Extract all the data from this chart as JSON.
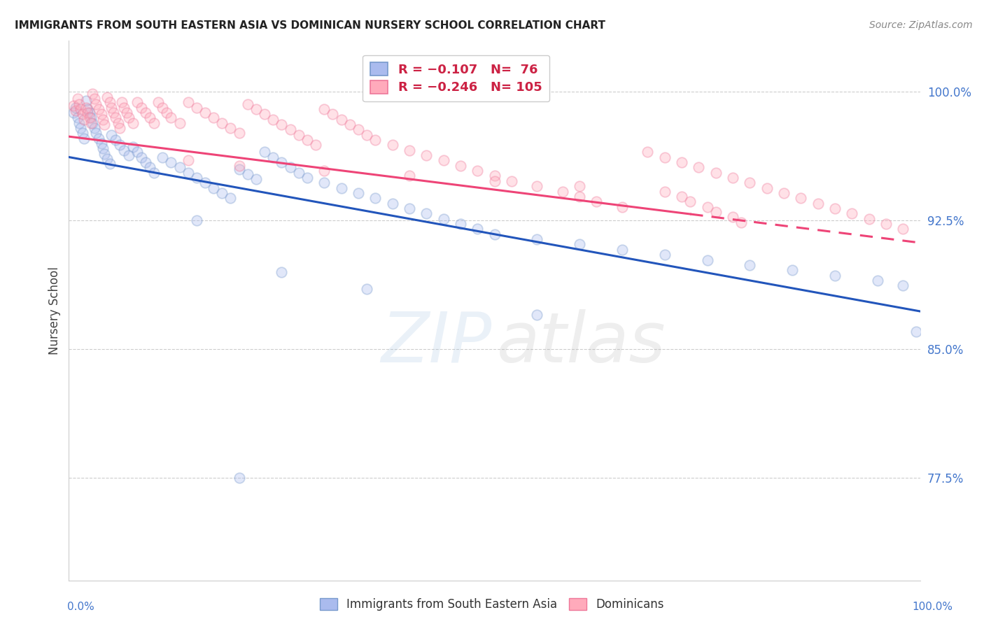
{
  "title": "IMMIGRANTS FROM SOUTH EASTERN ASIA VS DOMINICAN NURSERY SCHOOL CORRELATION CHART",
  "source": "Source: ZipAtlas.com",
  "ylabel": "Nursery School",
  "legend_blue_label": "Immigrants from South Eastern Asia",
  "legend_pink_label": "Dominicans",
  "ytick_labels": [
    "77.5%",
    "85.0%",
    "92.5%",
    "100.0%"
  ],
  "ytick_values": [
    0.775,
    0.85,
    0.925,
    1.0
  ],
  "xlim": [
    0.0,
    1.0
  ],
  "ylim": [
    0.715,
    1.03
  ],
  "blue_face_color": "#AABBEE",
  "blue_edge_color": "#7799CC",
  "pink_face_color": "#FFAABB",
  "pink_edge_color": "#EE7799",
  "blue_line_color": "#2255BB",
  "pink_line_color": "#EE4477",
  "grid_color": "#CCCCCC",
  "background_color": "#FFFFFF",
  "axis_tick_color": "#4477CC",
  "scatter_size": 110,
  "scatter_alpha": 0.35,
  "scatter_linewidth": 1.3,
  "blue_trend": [
    0.962,
    0.872
  ],
  "pink_trend": [
    0.974,
    0.912
  ],
  "blue_scatter_x": [
    0.005,
    0.008,
    0.01,
    0.012,
    0.014,
    0.016,
    0.018,
    0.02,
    0.022,
    0.024,
    0.026,
    0.028,
    0.03,
    0.032,
    0.035,
    0.038,
    0.04,
    0.042,
    0.045,
    0.048,
    0.05,
    0.055,
    0.06,
    0.065,
    0.07,
    0.075,
    0.08,
    0.085,
    0.09,
    0.095,
    0.1,
    0.11,
    0.12,
    0.13,
    0.14,
    0.15,
    0.16,
    0.17,
    0.18,
    0.19,
    0.2,
    0.21,
    0.22,
    0.23,
    0.24,
    0.25,
    0.26,
    0.27,
    0.28,
    0.3,
    0.32,
    0.34,
    0.36,
    0.38,
    0.4,
    0.42,
    0.44,
    0.46,
    0.48,
    0.5,
    0.55,
    0.6,
    0.65,
    0.7,
    0.75,
    0.8,
    0.85,
    0.9,
    0.95,
    0.98,
    0.995,
    0.15,
    0.25,
    0.35,
    0.55,
    0.2
  ],
  "blue_scatter_y": [
    0.988,
    0.991,
    0.985,
    0.982,
    0.979,
    0.976,
    0.973,
    0.995,
    0.99,
    0.988,
    0.985,
    0.982,
    0.979,
    0.976,
    0.973,
    0.97,
    0.967,
    0.964,
    0.961,
    0.958,
    0.975,
    0.972,
    0.969,
    0.966,
    0.963,
    0.968,
    0.965,
    0.962,
    0.959,
    0.956,
    0.953,
    0.962,
    0.959,
    0.956,
    0.953,
    0.95,
    0.947,
    0.944,
    0.941,
    0.938,
    0.955,
    0.952,
    0.949,
    0.965,
    0.962,
    0.959,
    0.956,
    0.953,
    0.95,
    0.947,
    0.944,
    0.941,
    0.938,
    0.935,
    0.932,
    0.929,
    0.926,
    0.923,
    0.92,
    0.917,
    0.914,
    0.911,
    0.908,
    0.905,
    0.902,
    0.899,
    0.896,
    0.893,
    0.89,
    0.887,
    0.86,
    0.925,
    0.895,
    0.885,
    0.87,
    0.775
  ],
  "pink_scatter_x": [
    0.005,
    0.008,
    0.01,
    0.012,
    0.014,
    0.016,
    0.018,
    0.02,
    0.022,
    0.024,
    0.026,
    0.028,
    0.03,
    0.032,
    0.035,
    0.038,
    0.04,
    0.042,
    0.045,
    0.048,
    0.05,
    0.052,
    0.055,
    0.058,
    0.06,
    0.062,
    0.065,
    0.068,
    0.07,
    0.075,
    0.08,
    0.085,
    0.09,
    0.095,
    0.1,
    0.105,
    0.11,
    0.115,
    0.12,
    0.13,
    0.14,
    0.15,
    0.16,
    0.17,
    0.18,
    0.19,
    0.2,
    0.21,
    0.22,
    0.23,
    0.24,
    0.25,
    0.26,
    0.27,
    0.28,
    0.29,
    0.3,
    0.31,
    0.32,
    0.33,
    0.34,
    0.35,
    0.36,
    0.38,
    0.4,
    0.42,
    0.44,
    0.46,
    0.48,
    0.5,
    0.52,
    0.55,
    0.58,
    0.6,
    0.62,
    0.65,
    0.68,
    0.7,
    0.72,
    0.74,
    0.76,
    0.78,
    0.8,
    0.82,
    0.84,
    0.86,
    0.88,
    0.9,
    0.92,
    0.94,
    0.96,
    0.98,
    0.14,
    0.2,
    0.3,
    0.4,
    0.5,
    0.6,
    0.7,
    0.72,
    0.73,
    0.75,
    0.76,
    0.78,
    0.79
  ],
  "pink_scatter_y": [
    0.992,
    0.989,
    0.996,
    0.993,
    0.99,
    0.987,
    0.984,
    0.991,
    0.988,
    0.985,
    0.982,
    0.999,
    0.996,
    0.993,
    0.99,
    0.987,
    0.984,
    0.981,
    0.997,
    0.994,
    0.991,
    0.988,
    0.985,
    0.982,
    0.979,
    0.994,
    0.991,
    0.988,
    0.985,
    0.982,
    0.994,
    0.991,
    0.988,
    0.985,
    0.982,
    0.994,
    0.991,
    0.988,
    0.985,
    0.982,
    0.994,
    0.991,
    0.988,
    0.985,
    0.982,
    0.979,
    0.976,
    0.993,
    0.99,
    0.987,
    0.984,
    0.981,
    0.978,
    0.975,
    0.972,
    0.969,
    0.99,
    0.987,
    0.984,
    0.981,
    0.978,
    0.975,
    0.972,
    0.969,
    0.966,
    0.963,
    0.96,
    0.957,
    0.954,
    0.951,
    0.948,
    0.945,
    0.942,
    0.939,
    0.936,
    0.933,
    0.965,
    0.962,
    0.959,
    0.956,
    0.953,
    0.95,
    0.947,
    0.944,
    0.941,
    0.938,
    0.935,
    0.932,
    0.929,
    0.926,
    0.923,
    0.92,
    0.96,
    0.957,
    0.954,
    0.951,
    0.948,
    0.945,
    0.942,
    0.939,
    0.936,
    0.933,
    0.93,
    0.927,
    0.924
  ]
}
